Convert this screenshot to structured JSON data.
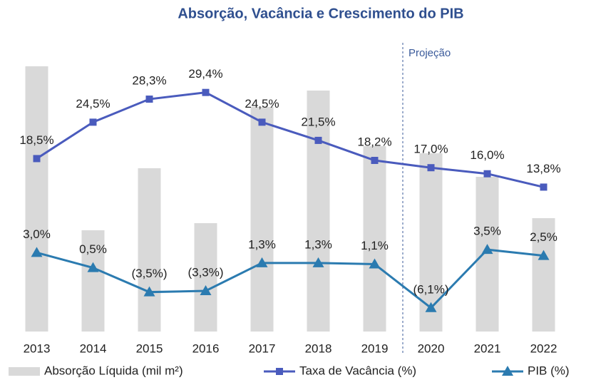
{
  "chart_data": {
    "type": "bar_line",
    "title": "Absorção, Vacância e Crescimento do PIB",
    "annotation": "Projeção",
    "categories": [
      "2013",
      "2014",
      "2015",
      "2016",
      "2017",
      "2018",
      "2019",
      "2020",
      "2021",
      "2022"
    ],
    "ylim": [
      -10,
      37
    ],
    "y2lim": [
      0,
      400
    ],
    "series": [
      {
        "name": "Absorção Líquida (mil m²)",
        "color": "#d9d9d9",
        "axis": "y2",
        "kind": "bar",
        "values": [
          372,
          142,
          229,
          152,
          315,
          338,
          260,
          250,
          217,
          159
        ]
      },
      {
        "name": "Taxa de Vacância (%)",
        "color": "#4a5bbd",
        "kind": "line",
        "marker": "square",
        "values": [
          18.5,
          24.5,
          28.3,
          29.4,
          24.5,
          21.5,
          18.2,
          17.0,
          16.0,
          13.8
        ],
        "value_labels": [
          "18,5%",
          "24,5%",
          "28,3%",
          "29,4%",
          "24,5%",
          "21,5%",
          "18,2%",
          "17,0%",
          "16,0%",
          "13,8%"
        ]
      },
      {
        "name": "PIB (%)",
        "color": "#2b7bb0",
        "kind": "line",
        "marker": "triangle",
        "values": [
          3.0,
          0.5,
          -3.5,
          -3.3,
          1.3,
          1.3,
          1.1,
          -6.1,
          3.5,
          2.5
        ],
        "value_labels": [
          "3,0%",
          "0,5%",
          "(3,5%)",
          "(3,3%)",
          "1,3%",
          "1,3%",
          "1,1%",
          "(6,1%)",
          "3,5%",
          "2,5%"
        ]
      }
    ]
  }
}
